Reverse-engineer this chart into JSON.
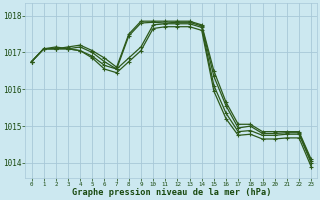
{
  "title": "Graphe pression niveau de la mer (hPa)",
  "background_color": "#cce8f0",
  "grid_color": "#a8c8d8",
  "line_color": "#2d5a1b",
  "xlim": [
    -0.5,
    23.5
  ],
  "ylim": [
    1013.6,
    1018.35
  ],
  "yticks": [
    1014,
    1015,
    1016,
    1017,
    1018
  ],
  "xticks": [
    0,
    1,
    2,
    3,
    4,
    5,
    6,
    7,
    8,
    9,
    10,
    11,
    12,
    13,
    14,
    15,
    16,
    17,
    18,
    19,
    20,
    21,
    22,
    23
  ],
  "series": [
    [
      1016.75,
      1017.1,
      1017.1,
      1017.15,
      1017.2,
      1017.05,
      1016.85,
      1016.6,
      1017.5,
      1017.85,
      1017.85,
      1017.85,
      1017.85,
      1017.85,
      1017.75,
      1016.5,
      1015.65,
      1015.05,
      1015.05,
      1014.85,
      1014.85,
      1014.85,
      1014.85,
      1014.1
    ],
    [
      1016.75,
      1017.1,
      1017.15,
      1017.1,
      1017.15,
      1017.0,
      1016.75,
      1016.55,
      1017.45,
      1017.8,
      1017.82,
      1017.8,
      1017.82,
      1017.82,
      1017.72,
      1016.35,
      1015.55,
      1014.95,
      1015.0,
      1014.8,
      1014.8,
      1014.82,
      1014.82,
      1014.05
    ],
    [
      1016.75,
      1017.1,
      1017.1,
      1017.1,
      1017.05,
      1016.9,
      1016.65,
      1016.55,
      1016.85,
      1017.15,
      1017.75,
      1017.78,
      1017.78,
      1017.78,
      1017.68,
      1016.1,
      1015.35,
      1014.85,
      1014.88,
      1014.75,
      1014.75,
      1014.78,
      1014.78,
      1014.0
    ],
    [
      1016.75,
      1017.1,
      1017.1,
      1017.1,
      1017.05,
      1016.85,
      1016.55,
      1016.45,
      1016.75,
      1017.05,
      1017.65,
      1017.7,
      1017.7,
      1017.7,
      1017.6,
      1015.95,
      1015.2,
      1014.75,
      1014.78,
      1014.65,
      1014.65,
      1014.68,
      1014.68,
      1013.9
    ]
  ]
}
